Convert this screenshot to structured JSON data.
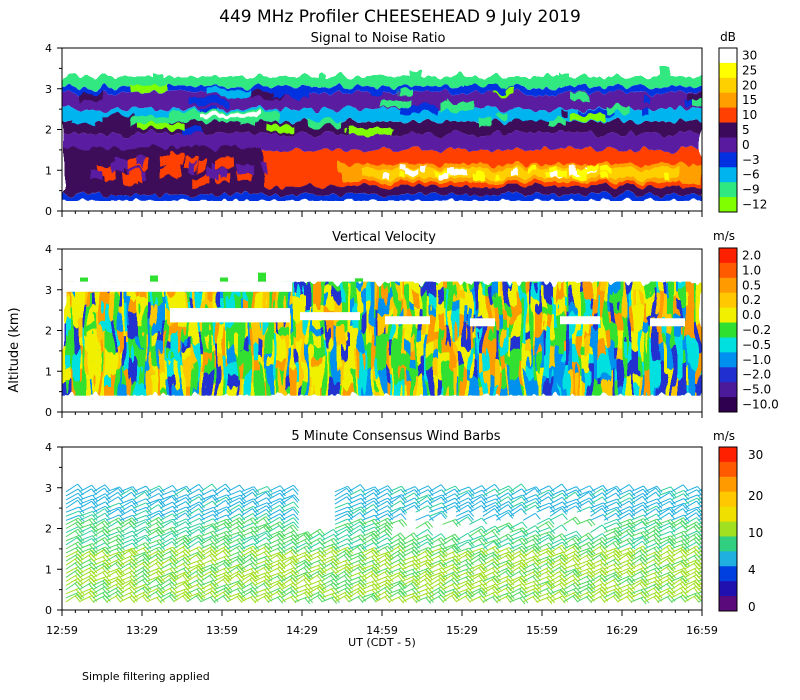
{
  "figure": {
    "title": "449 MHz Profiler CHEESEHEAD  9 July 2019",
    "ylabel": "Altitude (km)",
    "xlabel": "UT  (CDT - 5)",
    "footnote": "Simple filtering applied"
  },
  "chart_data": [
    {
      "type": "heatmap",
      "title": "Signal to Noise Ratio",
      "xlabel": "UT  (CDT - 5)",
      "ylabel": "Altitude (km)",
      "xticks": [
        "12:59",
        "13:29",
        "13:59",
        "14:29",
        "14:59",
        "15:29",
        "15:59",
        "16:29",
        "16:59"
      ],
      "xlim_hours_ut": [
        12.983,
        16.983
      ],
      "ylim_km": [
        0,
        4
      ],
      "yticks": [
        0,
        1,
        2,
        3,
        4
      ],
      "data_altitude_km": [
        0.25,
        3.3
      ],
      "colorbar": {
        "unit": "dB",
        "labels": [
          "30",
          "25",
          "20",
          "15",
          "10",
          "5",
          "0",
          "−3",
          "−6",
          "−9",
          "−12"
        ],
        "colors": [
          "#ffffff",
          "#ffff00",
          "#ffd000",
          "#ffa000",
          "#ff4000",
          "#3c0a5a",
          "#5a1aa0",
          "#0030e0",
          "#00b4f0",
          "#30e880",
          "#80ff00"
        ]
      },
      "layers": [
        {
          "altitude_km": [
            0.25,
            0.4
          ],
          "snr_db": -3
        },
        {
          "altitude_km": [
            0.4,
            0.6
          ],
          "snr_db": 5
        },
        {
          "altitude_km": [
            0.6,
            1.5
          ],
          "snr_db": 12
        },
        {
          "altitude_km": [
            0.75,
            1.15
          ],
          "snr_db": 22
        },
        {
          "altitude_km": [
            1.5,
            1.9
          ],
          "snr_db": 2
        },
        {
          "altitude_km": [
            1.9,
            2.2
          ],
          "snr_db": -6
        },
        {
          "altitude_km": [
            2.2,
            2.5
          ],
          "snr_db": -9
        },
        {
          "altitude_km": [
            2.5,
            2.9
          ],
          "snr_db": -3
        },
        {
          "altitude_km": [
            2.9,
            3.3
          ],
          "snr_db": -10
        }
      ]
    },
    {
      "type": "heatmap",
      "title": "Vertical Velocity",
      "xlabel": "UT  (CDT - 5)",
      "ylabel": "Altitude (km)",
      "xticks": [
        "12:59",
        "13:29",
        "13:59",
        "14:29",
        "14:59",
        "15:29",
        "15:59",
        "16:29",
        "16:59"
      ],
      "ylim_km": [
        0,
        4
      ],
      "yticks": [
        0,
        1,
        2,
        3,
        4
      ],
      "data_altitude_km": [
        0.4,
        3.2
      ],
      "colorbar": {
        "unit": "m/s",
        "labels": [
          "2.0",
          "1.0",
          "0.5",
          "0.2",
          "0.0",
          "−0.2",
          "−0.5",
          "−1.0",
          "−2.0",
          "−5.0",
          "−10.0"
        ],
        "colors": [
          "#ff2000",
          "#ff5a00",
          "#ff9a00",
          "#ffc800",
          "#f0f000",
          "#30e030",
          "#00e0e0",
          "#0090f0",
          "#2030d0",
          "#4a1a9a",
          "#300050"
        ]
      },
      "dominant_values_m_s": [
        0.0,
        -0.2,
        0.2,
        -0.5,
        -1.0
      ]
    },
    {
      "type": "wind-barbs",
      "title": "5 Minute Consensus Wind Barbs",
      "xlabel": "UT  (CDT - 5)",
      "ylabel": "Altitude (km)",
      "xticks": [
        "12:59",
        "13:29",
        "13:59",
        "14:29",
        "14:59",
        "15:29",
        "15:59",
        "16:29",
        "16:59"
      ],
      "ylim_km": [
        0,
        4
      ],
      "yticks": [
        0,
        1,
        2,
        3,
        4
      ],
      "colorbar": {
        "unit": "m/s",
        "labels": [
          "30",
          "20",
          "10",
          "4",
          "0"
        ],
        "colors": [
          "#ff2000",
          "#ff5a00",
          "#ff9a00",
          "#ffc800",
          "#f0e000",
          "#a0e020",
          "#30d080",
          "#20b0e0",
          "#0040e0",
          "#2010b0",
          "#5a0a7a"
        ]
      },
      "time_step_minutes": 5,
      "profile": [
        {
          "altitude_km": 0.3,
          "speed_m_s": 8
        },
        {
          "altitude_km": 0.8,
          "speed_m_s": 9
        },
        {
          "altitude_km": 1.2,
          "speed_m_s": 10
        },
        {
          "altitude_km": 1.7,
          "speed_m_s": 8
        },
        {
          "altitude_km": 2.1,
          "speed_m_s": 6
        },
        {
          "altitude_km": 2.6,
          "speed_m_s": 5
        },
        {
          "altitude_km": 3.0,
          "speed_m_s": 4
        }
      ]
    }
  ]
}
